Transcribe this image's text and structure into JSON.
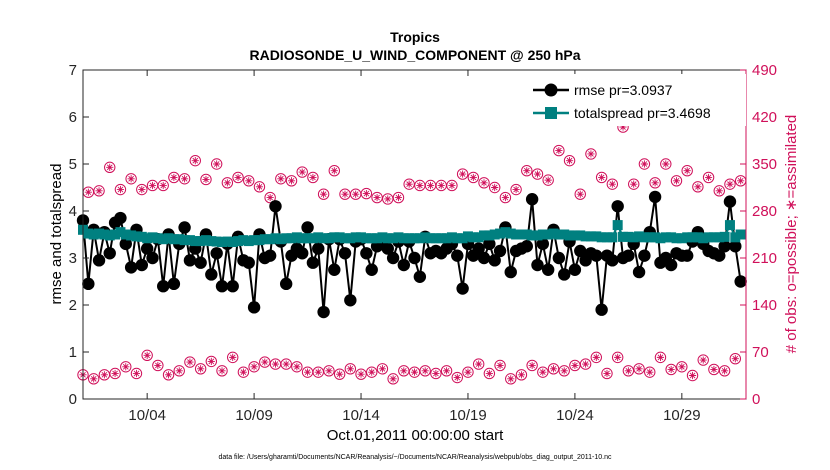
{
  "chart_data": {
    "type": "line",
    "title": "Tropics",
    "subtitle": "RADIOSONDE_U_WIND_COMPONENT @ 250 hPa",
    "xlabel": "Oct.01,2011 00:00:00 start",
    "ylabel_left": "rmse and totalspread",
    "ylabel_right": "# of obs: o=possible; ∗=assimilated",
    "footnote": "data file: /Users/gharamti/Documents/NCAR/Reanalysis/~/Documents/NCAR/Reanalysis/webpub/obs_diag_output_2011-10.nc",
    "xlim": [
      0,
      124
    ],
    "xticks": [
      12,
      32,
      52,
      72,
      92,
      112
    ],
    "xtick_labels": [
      "10/04",
      "10/09",
      "10/14",
      "10/19",
      "10/24",
      "10/29"
    ],
    "ylim_left": [
      0,
      7
    ],
    "yticks_left": [
      "0",
      "1",
      "2",
      "3",
      "4",
      "5",
      "6",
      "7"
    ],
    "ylim_right": [
      0,
      490
    ],
    "yticks_right": [
      "0",
      "70",
      "140",
      "210",
      "280",
      "350",
      "420",
      "490"
    ],
    "colors": {
      "rmse": "#000000",
      "spread": "#008080",
      "obs": "#d0105a"
    },
    "legend": [
      {
        "label": "rmse pr=3.0937"
      },
      {
        "label": "totalspread pr=3.4698"
      }
    ],
    "series": [
      {
        "name": "rmse",
        "axis": "left",
        "values": [
          3.8,
          2.45,
          3.6,
          2.95,
          3.55,
          3.1,
          3.75,
          3.85,
          3.3,
          2.8,
          3.6,
          2.85,
          3.2,
          3.0,
          3.4,
          2.4,
          3.5,
          2.45,
          3.3,
          3.65,
          2.95,
          3.2,
          2.9,
          3.5,
          2.65,
          3.1,
          2.4,
          3.3,
          2.4,
          3.45,
          2.95,
          2.9,
          1.95,
          3.5,
          3.0,
          3.05,
          4.1,
          3.35,
          2.45,
          3.05,
          3.2,
          3.1,
          3.65,
          2.9,
          3.2,
          1.85,
          3.4,
          2.75,
          3.4,
          3.1,
          2.1,
          3.35,
          3.4,
          3.1,
          2.75,
          3.25,
          3.3,
          3.2,
          3.0,
          3.35,
          2.85,
          3.35,
          3.0,
          2.6,
          3.45,
          3.1,
          3.15,
          3.1,
          3.2,
          3.3,
          3.05,
          2.35,
          3.3,
          3.05,
          3.2,
          3.0,
          3.3,
          2.95,
          3.15,
          3.65,
          2.7,
          3.15,
          3.2,
          3.25,
          4.25,
          2.85,
          3.3,
          2.75,
          3.6,
          3.0,
          2.65,
          3.35,
          2.75,
          3.15,
          2.95,
          3.1,
          3.05,
          1.9,
          3.05,
          2.95,
          4.1,
          3.0,
          3.05,
          3.3,
          2.7,
          3.05,
          3.55,
          4.3,
          2.9,
          3.0,
          2.85,
          3.1,
          3.05,
          3.05,
          3.35,
          3.55,
          3.3,
          3.15,
          3.1,
          3.05,
          3.25,
          4.2,
          3.25,
          2.5
        ]
      },
      {
        "name": "totalspread",
        "axis": "left",
        "values": [
          3.6,
          3.52,
          3.5,
          3.52,
          3.5,
          3.48,
          3.5,
          3.55,
          3.5,
          3.48,
          3.46,
          3.45,
          3.42,
          3.44,
          3.42,
          3.4,
          3.42,
          3.4,
          3.4,
          3.38,
          3.38,
          3.36,
          3.36,
          3.38,
          3.36,
          3.35,
          3.34,
          3.35,
          3.34,
          3.36,
          3.38,
          3.36,
          3.38,
          3.38,
          3.4,
          3.4,
          3.42,
          3.4,
          3.42,
          3.42,
          3.44,
          3.42,
          3.42,
          3.42,
          3.44,
          3.42,
          3.42,
          3.44,
          3.44,
          3.42,
          3.42,
          3.44,
          3.44,
          3.42,
          3.42,
          3.42,
          3.44,
          3.42,
          3.42,
          3.44,
          3.42,
          3.42,
          3.42,
          3.42,
          3.44,
          3.42,
          3.42,
          3.42,
          3.42,
          3.44,
          3.42,
          3.42,
          3.46,
          3.44,
          3.44,
          3.48,
          3.48,
          3.5,
          3.52,
          3.55,
          3.52,
          3.5,
          3.5,
          3.5,
          3.48,
          3.48,
          3.5,
          3.5,
          3.52,
          3.5,
          3.5,
          3.48,
          3.48,
          3.48,
          3.46,
          3.46,
          3.46,
          3.44,
          3.44,
          3.44,
          3.7,
          3.45,
          3.45,
          3.44,
          3.46,
          3.44,
          3.44,
          3.44,
          3.42,
          3.44,
          3.44,
          3.42,
          3.42,
          3.44,
          3.44,
          3.44,
          3.42,
          3.44,
          3.44,
          3.44,
          3.45,
          3.7,
          3.44,
          3.5
        ]
      },
      {
        "name": "obs_possible",
        "axis": "right",
        "values": [
          36,
          308,
          30,
          310,
          36,
          345,
          38,
          312,
          48,
          328,
          38,
          312,
          65,
          318,
          50,
          318,
          36,
          330,
          42,
          328,
          55,
          355,
          45,
          327,
          56,
          350,
          42,
          322,
          62,
          330,
          40,
          325,
          48,
          316,
          55,
          300,
          52,
          328,
          52,
          325,
          48,
          338,
          40,
          330,
          40,
          305,
          42,
          340,
          37,
          305,
          45,
          305,
          37,
          306,
          40,
          300,
          45,
          298,
          30,
          300,
          42,
          320,
          40,
          318,
          42,
          318,
          38,
          318,
          42,
          318,
          32,
          335,
          40,
          330,
          52,
          322,
          38,
          315,
          50,
          300,
          30,
          312,
          36,
          340,
          50,
          335,
          40,
          326,
          45,
          370,
          42,
          355,
          50,
          305,
          52,
          365,
          62,
          330,
          38,
          320,
          62,
          405,
          42,
          320,
          45,
          350,
          40,
          322,
          62,
          350,
          44,
          325,
          48,
          340,
          35,
          316,
          58,
          330,
          44,
          310,
          42,
          320,
          60,
          325
        ]
      },
      {
        "name": "obs_assimilated",
        "axis": "right",
        "values": [
          36,
          308,
          30,
          310,
          36,
          345,
          38,
          312,
          48,
          328,
          38,
          312,
          65,
          318,
          50,
          318,
          36,
          330,
          42,
          328,
          55,
          355,
          45,
          327,
          56,
          350,
          42,
          322,
          62,
          330,
          40,
          325,
          48,
          316,
          55,
          300,
          52,
          328,
          52,
          325,
          48,
          338,
          40,
          330,
          40,
          305,
          42,
          340,
          37,
          305,
          45,
          305,
          37,
          306,
          40,
          300,
          45,
          298,
          30,
          300,
          42,
          320,
          40,
          318,
          42,
          318,
          38,
          318,
          42,
          318,
          32,
          335,
          40,
          330,
          52,
          322,
          38,
          315,
          50,
          300,
          30,
          312,
          36,
          340,
          50,
          335,
          40,
          326,
          45,
          370,
          42,
          355,
          50,
          305,
          52,
          365,
          62,
          330,
          38,
          320,
          62,
          405,
          42,
          320,
          45,
          350,
          40,
          322,
          62,
          350,
          44,
          325,
          48,
          340,
          35,
          316,
          58,
          330,
          44,
          310,
          42,
          320,
          60,
          325
        ]
      }
    ]
  }
}
